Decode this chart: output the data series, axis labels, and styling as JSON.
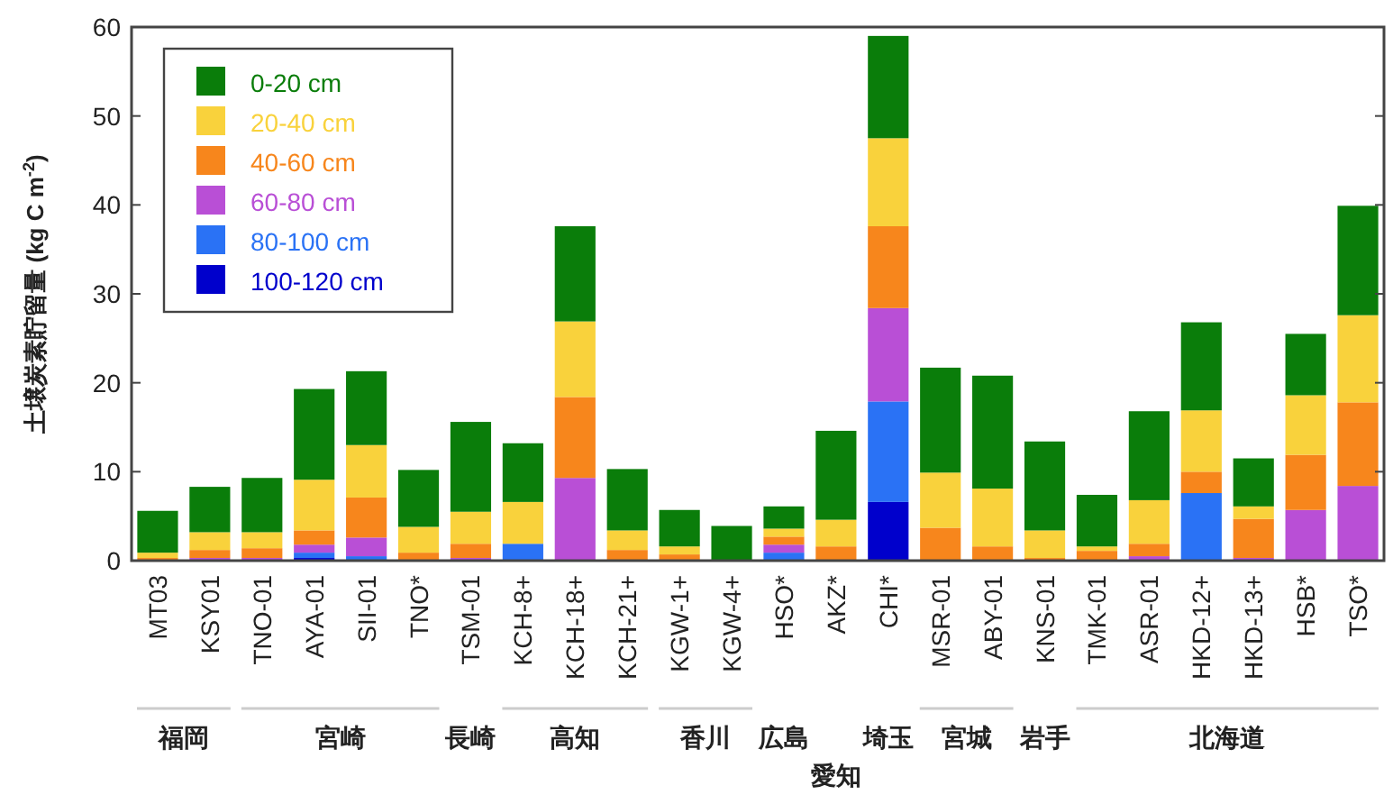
{
  "chart_data": {
    "type": "bar",
    "stacked": true,
    "ylabel": "土壌炭素貯留量 (kg C m$^{-2}$)",
    "categories": [
      "MT03",
      "KSY01",
      "TNO-01",
      "AYA-01",
      "SII-01",
      "TNO*",
      "TSM-01",
      "KCH-8+",
      "KCH-18+",
      "KCH-21+",
      "KGW-1+",
      "KGW-4+",
      "HSO*",
      "AKZ*",
      "CHI*",
      "MSR-01",
      "ABY-01",
      "KNS-01",
      "TMK-01",
      "ASR-01",
      "HKD-12+",
      "HKD-13+",
      "HSB*",
      "TSO*"
    ],
    "series": [
      {
        "name": "100-120 cm",
        "color": "#0000cc",
        "values": [
          0,
          0,
          0,
          0.3,
          0,
          0,
          0,
          0,
          0,
          0,
          0,
          0,
          0,
          0,
          6.6,
          0,
          0,
          0,
          0,
          0,
          0,
          0,
          0,
          0
        ]
      },
      {
        "name": "80-100 cm",
        "color": "#2a72f5",
        "values": [
          0,
          0,
          0,
          0.6,
          0.5,
          0,
          0,
          1.9,
          0,
          0,
          0,
          0,
          0.9,
          0,
          11.3,
          0,
          0,
          0,
          0,
          0,
          7.6,
          0,
          0,
          0
        ]
      },
      {
        "name": "60-80 cm",
        "color": "#b94fd6",
        "values": [
          0,
          0.3,
          0.3,
          0.9,
          2.1,
          0,
          0.3,
          0,
          9.3,
          0,
          0,
          0,
          0.9,
          0,
          10.5,
          0,
          0,
          0,
          0,
          0.5,
          0,
          0.3,
          5.7,
          8.4
        ]
      },
      {
        "name": "40-60 cm",
        "color": "#f7861c",
        "values": [
          0.3,
          0.9,
          1.1,
          1.6,
          4.5,
          0.9,
          1.6,
          0,
          9.1,
          1.2,
          0.7,
          0,
          0.9,
          1.6,
          9.2,
          3.7,
          1.6,
          0.3,
          1.1,
          1.4,
          2.4,
          4.4,
          6.2,
          9.4
        ]
      },
      {
        "name": "20-40 cm",
        "color": "#f9d23c",
        "values": [
          0.6,
          2.0,
          1.8,
          5.7,
          5.9,
          2.9,
          3.6,
          4.7,
          8.5,
          2.2,
          0.9,
          0,
          0.9,
          3.0,
          9.9,
          6.2,
          6.5,
          3.1,
          0.5,
          4.9,
          6.9,
          1.4,
          6.7,
          9.8
        ]
      },
      {
        "name": "0-20 cm",
        "color": "#0a7d0a",
        "values": [
          4.7,
          5.1,
          6.1,
          10.2,
          8.3,
          6.4,
          10.1,
          6.6,
          10.7,
          6.9,
          4.1,
          3.9,
          2.5,
          10.0,
          11.5,
          11.8,
          12.7,
          10.0,
          5.8,
          10.0,
          9.9,
          5.4,
          6.9,
          12.3
        ]
      }
    ],
    "ylim": [
      0,
      60
    ],
    "yticks": [
      0,
      10,
      20,
      30,
      40,
      50,
      60
    ],
    "legend": "top left",
    "grid": false,
    "annotations": [
      "福岡",
      "宮崎",
      "長崎",
      "高知",
      "香川",
      "広島",
      "愛知",
      "埼玉",
      "宮城",
      "岩手",
      "北海道"
    ]
  }
}
